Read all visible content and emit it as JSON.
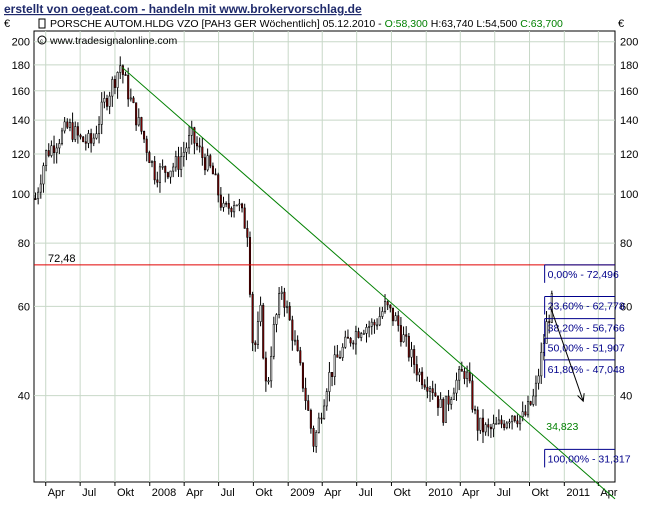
{
  "banner": "erstellt von oegeat.com - handeln mit www.brokervorschlag.de",
  "header": {
    "instrument": "PORSCHE AUTOM.HLDG VZO [PAH3 GER  Wöchentlich] 05.12.2010 - ",
    "open": "O:58,300",
    "high": "H:63,740",
    "low": "L:54,500",
    "close": "C:63,700",
    "source": "www.tradesignalonline.com"
  },
  "currency_symbol": "€",
  "colors": {
    "open_close_green": "#008000",
    "grid": "#c8d8c8",
    "trendline": "#008000",
    "level_line": "#e00000",
    "fib": "#00008b",
    "candle_up": "#ffffff",
    "candle_down": "#8b0000",
    "banner": "#1f2a6b"
  },
  "chart_data": {
    "type": "candlestick",
    "period": "weekly",
    "yscale": "log",
    "yticks": [
      40,
      60,
      80,
      100,
      120,
      140,
      160,
      180,
      200
    ],
    "ytick_labels": [
      "40",
      "60",
      "80",
      "100",
      "120",
      "140",
      "160",
      "180",
      "200"
    ],
    "xtick_labels": [
      "Apr",
      "Jul",
      "Okt",
      "2008",
      "Apr",
      "Jul",
      "Okt",
      "2009",
      "Apr",
      "Jul",
      "Okt",
      "2010",
      "Apr",
      "Jul",
      "Okt",
      "2011",
      "Apr"
    ],
    "xticks": [
      "2007-04",
      "2007-07",
      "2007-10",
      "2008-01",
      "2008-04",
      "2008-07",
      "2008-10",
      "2009-01",
      "2009-04",
      "2009-07",
      "2009-10",
      "2010-01",
      "2010-04",
      "2010-07",
      "2010-10",
      "2011-01",
      "2011-04"
    ],
    "xlim": [
      "2007-03-01",
      "2011-05-15"
    ],
    "ylim": [
      27,
      210
    ],
    "series_path": [
      [
        "2007-03-05",
        98
      ],
      [
        "2007-04-01",
        120
      ],
      [
        "2007-05-01",
        128
      ],
      [
        "2007-06-01",
        136
      ],
      [
        "2007-07-01",
        128
      ],
      [
        "2007-08-01",
        126
      ],
      [
        "2007-09-01",
        150
      ],
      [
        "2007-10-15",
        180
      ],
      [
        "2007-11-15",
        150
      ],
      [
        "2007-12-15",
        130
      ],
      [
        "2008-01-15",
        110
      ],
      [
        "2008-02-15",
        112
      ],
      [
        "2008-03-15",
        115
      ],
      [
        "2008-04-20",
        130
      ],
      [
        "2008-05-15",
        120
      ],
      [
        "2008-06-15",
        110
      ],
      [
        "2008-07-15",
        92
      ],
      [
        "2008-08-15",
        98
      ],
      [
        "2008-09-15",
        85
      ],
      [
        "2008-10-01",
        48
      ],
      [
        "2008-10-20",
        58
      ],
      [
        "2008-11-05",
        40
      ],
      [
        "2008-11-20",
        52
      ],
      [
        "2008-12-15",
        65
      ],
      [
        "2009-01-15",
        52
      ],
      [
        "2009-02-10",
        42
      ],
      [
        "2009-03-10",
        32
      ],
      [
        "2009-04-15",
        43
      ],
      [
        "2009-05-15",
        48
      ],
      [
        "2009-06-15",
        52
      ],
      [
        "2009-07-15",
        55
      ],
      [
        "2009-08-15",
        55
      ],
      [
        "2009-09-15",
        60
      ],
      [
        "2009-10-15",
        56
      ],
      [
        "2009-11-15",
        49
      ],
      [
        "2009-12-15",
        44
      ],
      [
        "2010-01-15",
        42
      ],
      [
        "2010-02-15",
        37
      ],
      [
        "2010-03-15",
        42
      ],
      [
        "2010-04-15",
        45
      ],
      [
        "2010-05-15",
        35
      ],
      [
        "2010-06-15",
        34
      ],
      [
        "2010-07-15",
        35
      ],
      [
        "2010-08-15",
        37
      ],
      [
        "2010-09-15",
        36
      ],
      [
        "2010-10-15",
        40
      ],
      [
        "2010-11-15",
        55
      ],
      [
        "2010-12-05",
        63.7
      ]
    ],
    "lines": [
      {
        "type": "horizontal",
        "value": 72.48,
        "label": "72,48"
      },
      {
        "type": "trendline",
        "from": [
          "2007-10-20",
          178
        ],
        "to": [
          "2011-05-15",
          25
        ]
      }
    ],
    "fibonacci": [
      {
        "value": 72.496,
        "label": "0,00% - 72,496"
      },
      {
        "value": 62.778,
        "label": "23,60% - 62,778"
      },
      {
        "value": 56.766,
        "label": "38,20% - 56,766"
      },
      {
        "value": 51.907,
        "label": "50,00% - 51,907"
      },
      {
        "value": 47.048,
        "label": "61,80% - 47,048"
      },
      {
        "value": 31.317,
        "label": "100,00% - 31,317"
      }
    ],
    "annotations": [
      {
        "date": "2010-11-01",
        "value": 34.823,
        "label": "34,823"
      }
    ],
    "arrow": {
      "from": [
        "2010-11-25",
        60
      ],
      "to": [
        "2011-02-20",
        39
      ]
    }
  }
}
